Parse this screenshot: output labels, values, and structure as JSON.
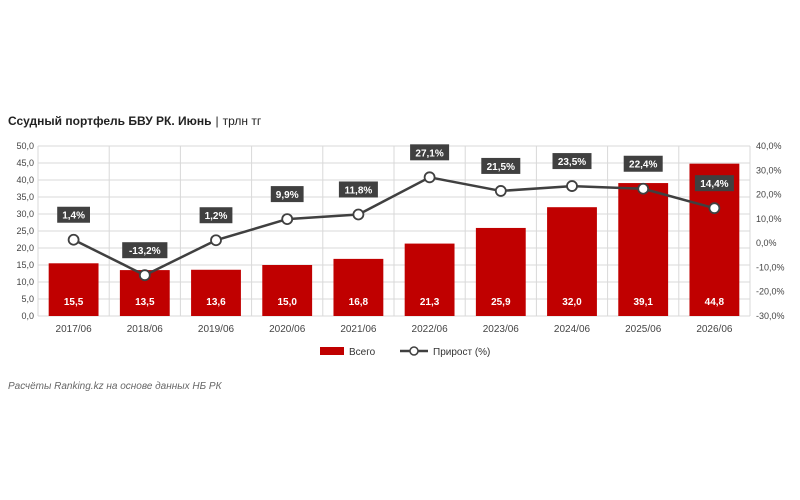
{
  "title": {
    "main": "Ссудный портфель БВУ РК. Июнь",
    "separator": "|",
    "unit": "трлн тг"
  },
  "source": "Расчёты Ranking.kz на основе данных НБ РК",
  "colors": {
    "bar": "#c00000",
    "line": "#404040",
    "label_bg": "#404040",
    "grid": "#d9d9d9"
  },
  "chart_data": {
    "type": "bar",
    "categories": [
      "2017/06",
      "2018/06",
      "2019/06",
      "2020/06",
      "2021/06",
      "2022/06",
      "2023/06",
      "2024/06",
      "2025/06",
      "2026/06"
    ],
    "series": [
      {
        "name": "Всего",
        "type": "bar",
        "axis": "left",
        "values": [
          15.5,
          13.5,
          13.6,
          15.0,
          16.8,
          21.3,
          25.9,
          32.0,
          39.1,
          44.8
        ],
        "labels": [
          "15,5",
          "13,5",
          "13,6",
          "15,0",
          "16,8",
          "21,3",
          "25,9",
          "32,0",
          "39,1",
          "44,8"
        ]
      },
      {
        "name": "Прирост (%)",
        "type": "line",
        "axis": "right",
        "values": [
          1.4,
          -13.2,
          1.2,
          9.9,
          11.8,
          27.1,
          21.5,
          23.5,
          22.4,
          14.4
        ],
        "labels": [
          "1,4%",
          "-13,2%",
          "1,2%",
          "9,9%",
          "11,8%",
          "27,1%",
          "21,5%",
          "23,5%",
          "22,4%",
          "14,4%"
        ]
      }
    ],
    "y_left": {
      "min": 0,
      "max": 50,
      "step": 5,
      "ticks": [
        "0,0",
        "5,0",
        "10,0",
        "15,0",
        "20,0",
        "25,0",
        "30,0",
        "35,0",
        "40,0",
        "45,0",
        "50,0"
      ]
    },
    "y_right": {
      "min": -30,
      "max": 40,
      "step": 10,
      "ticks": [
        "-30,0%",
        "-20,0%",
        "-10,0%",
        "0,0%",
        "10,0%",
        "20,0%",
        "30,0%",
        "40,0%"
      ]
    },
    "grid": true,
    "legend_position": "bottom"
  }
}
